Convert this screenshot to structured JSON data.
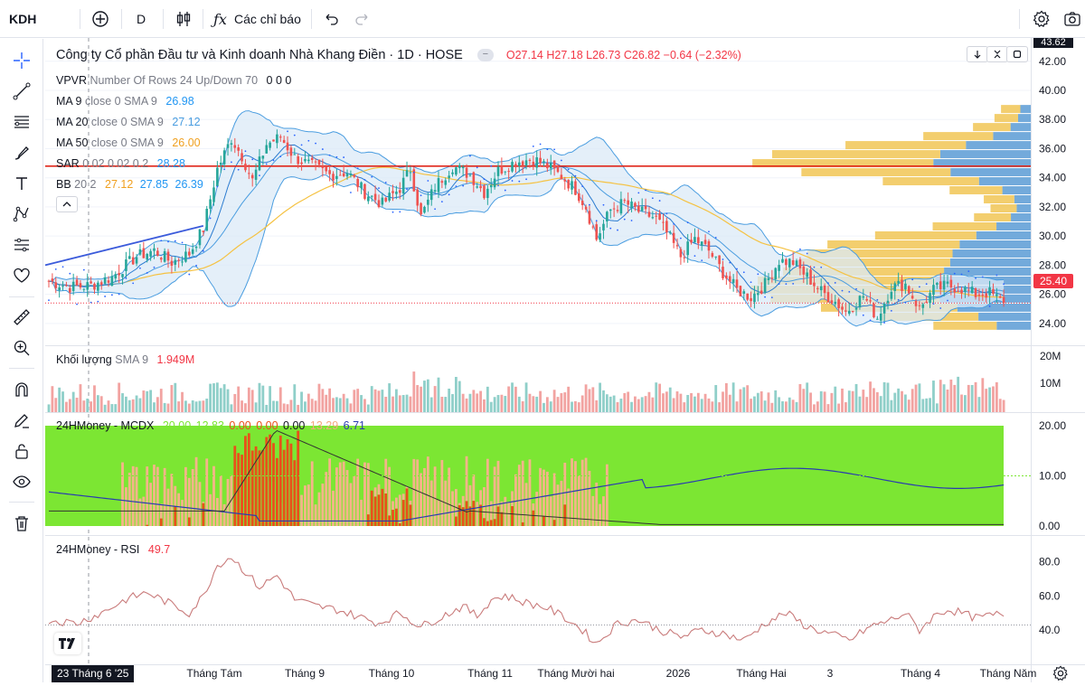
{
  "toolbar": {
    "symbol": "KDH",
    "interval": "D",
    "indicators_label": "Các chỉ báo"
  },
  "header": {
    "company": "Công ty Cổ phần Đầu tư và Kinh doanh Nhà Khang Điền · 1D · HOSE",
    "o": "O27.14",
    "h": "H27.18",
    "l": "L26.73",
    "c": "C26.82",
    "change": "−0.64 (−2.32%)"
  },
  "legends": {
    "vpvr": {
      "name": "VPVR",
      "params": "Number Of Rows 24 Up/Down 70",
      "values": "0 0 0"
    },
    "ma9": {
      "name": "MA 9",
      "params": "close 0 SMA 9",
      "value": "26.98"
    },
    "ma20": {
      "name": "MA 20",
      "params": "close 0 SMA 9",
      "value": "27.12"
    },
    "ma50": {
      "name": "MA 50",
      "params": "close 0 SMA 9",
      "value": "26.00"
    },
    "sar": {
      "name": "SAR",
      "params": "0.02 0.02 0.2",
      "value": "28.28"
    },
    "bb": {
      "name": "BB",
      "params": "20 2",
      "v1": "27.12",
      "v2": "27.85",
      "v3": "26.39"
    },
    "volume": {
      "name": "Khối lượng",
      "params": "SMA 9",
      "value": "1.949M"
    },
    "mcdx": {
      "name": "24HMoney - MCDX",
      "v1": "20.00",
      "v2": "12.83",
      "v3": "0.00",
      "v4": "0.00",
      "v5": "0.00",
      "v6": "13.29",
      "v7": "6.71"
    },
    "rsi": {
      "name": "24HMoney - RSI",
      "value": "49.7"
    }
  },
  "tags": {
    "last_price": "25.40",
    "top_price": "43.62",
    "crosshair_date": "23 Tháng 6 '25"
  },
  "colors": {
    "up": "#26a69a",
    "down": "#ef5350",
    "bb_fill": "#dbeaf7",
    "bb_line": "#4a9de0",
    "ma50": "#f5c242",
    "vpvr_up": "#5b9bd5",
    "vpvr_down": "#f0c24a",
    "mcdx_green": "#7ce633",
    "mcdx_orange": "#e8501a",
    "rsi": "#c97b7b",
    "hline": "#e0271b"
  },
  "chart_data": [
    {
      "type": "candlestick",
      "title": "Công ty Cổ phần Đầu tư và Kinh doanh Nhà Khang Điền · 1D · HOSE",
      "x_ticks": [
        "23 Tháng 6 '25",
        "Tháng Tám",
        "Tháng 9",
        "Tháng 10",
        "Tháng 11",
        "Tháng Mười hai",
        "2026",
        "Tháng Hai",
        "3",
        "Tháng 4",
        "Tháng Năm"
      ],
      "y_ticks": [
        24,
        26,
        28,
        30,
        32,
        34,
        36,
        38,
        40,
        42
      ],
      "ylim": [
        22.5,
        43.6
      ],
      "close_path": [
        [
          0,
          26.9
        ],
        [
          6,
          26.5
        ],
        [
          12,
          26.6
        ],
        [
          18,
          27.2
        ],
        [
          25,
          28.6
        ],
        [
          30,
          29.0
        ],
        [
          35,
          28.2
        ],
        [
          40,
          28.8
        ],
        [
          44,
          30.5
        ],
        [
          48,
          34.6
        ],
        [
          52,
          36.7
        ],
        [
          55,
          35.5
        ],
        [
          58,
          33.8
        ],
        [
          62,
          36.3
        ],
        [
          66,
          36.8
        ],
        [
          70,
          35.4
        ],
        [
          75,
          34.8
        ],
        [
          80,
          34.2
        ],
        [
          85,
          34.4
        ],
        [
          90,
          33.0
        ],
        [
          95,
          32.2
        ],
        [
          100,
          33.3
        ],
        [
          103,
          34.6
        ],
        [
          106,
          31.3
        ],
        [
          110,
          33.4
        ],
        [
          115,
          34.8
        ],
        [
          120,
          34.2
        ],
        [
          124,
          33.0
        ],
        [
          128,
          34.5
        ],
        [
          133,
          35.1
        ],
        [
          138,
          35.3
        ],
        [
          142,
          34.8
        ],
        [
          146,
          34.1
        ],
        [
          150,
          33.2
        ],
        [
          153,
          32.0
        ],
        [
          156,
          29.8
        ],
        [
          160,
          31.8
        ],
        [
          164,
          32.3
        ],
        [
          168,
          31.7
        ],
        [
          173,
          31.2
        ],
        [
          176,
          30.2
        ],
        [
          180,
          28.6
        ],
        [
          184,
          29.8
        ],
        [
          188,
          29.0
        ],
        [
          192,
          27.5
        ],
        [
          196,
          26.3
        ],
        [
          200,
          25.8
        ],
        [
          204,
          26.7
        ],
        [
          208,
          28.3
        ],
        [
          212,
          28.2
        ],
        [
          216,
          27.2
        ],
        [
          220,
          26.2
        ],
        [
          224,
          25.5
        ],
        [
          227,
          24.8
        ],
        [
          232,
          25.9
        ],
        [
          236,
          24.4
        ],
        [
          240,
          26.5
        ],
        [
          244,
          26.7
        ],
        [
          248,
          25.0
        ],
        [
          252,
          26.3
        ],
        [
          256,
          26.6
        ],
        [
          260,
          26.4
        ],
        [
          264,
          26.0
        ],
        [
          268,
          26.1
        ],
        [
          272,
          25.4
        ]
      ],
      "overlays": [
        "MA 9",
        "MA 20",
        "MA 50",
        "SAR",
        "BB 20 2"
      ],
      "reference_line": 34.8,
      "last_price": 25.4
    },
    {
      "type": "bar",
      "title": "Khối lượng",
      "y_ticks": [
        "10M",
        "20M"
      ],
      "sma9": "1.949M"
    },
    {
      "type": "area",
      "title": "24HMoney - MCDX",
      "y_ticks": [
        0,
        10,
        20
      ],
      "ylim": [
        0,
        20
      ]
    },
    {
      "type": "line",
      "title": "24HMoney - RSI",
      "y_ticks": [
        40,
        60,
        80
      ],
      "last": 49.7,
      "path": [
        [
          0,
          46
        ],
        [
          8,
          44
        ],
        [
          15,
          50
        ],
        [
          22,
          58
        ],
        [
          28,
          62
        ],
        [
          34,
          56
        ],
        [
          40,
          50
        ],
        [
          44,
          60
        ],
        [
          48,
          78
        ],
        [
          52,
          83
        ],
        [
          56,
          74
        ],
        [
          60,
          65
        ],
        [
          65,
          72
        ],
        [
          70,
          58
        ],
        [
          76,
          54
        ],
        [
          82,
          52
        ],
        [
          88,
          48
        ],
        [
          94,
          44
        ],
        [
          100,
          50
        ],
        [
          106,
          42
        ],
        [
          112,
          48
        ],
        [
          118,
          54
        ],
        [
          122,
          48
        ],
        [
          126,
          58
        ],
        [
          130,
          60
        ],
        [
          136,
          56
        ],
        [
          142,
          53
        ],
        [
          148,
          46
        ],
        [
          152,
          40
        ],
        [
          156,
          32
        ],
        [
          162,
          44
        ],
        [
          168,
          46
        ],
        [
          174,
          40
        ],
        [
          180,
          36
        ],
        [
          186,
          40
        ],
        [
          192,
          38
        ],
        [
          198,
          34
        ],
        [
          204,
          44
        ],
        [
          210,
          50
        ],
        [
          216,
          42
        ],
        [
          222,
          38
        ],
        [
          228,
          34
        ],
        [
          234,
          42
        ],
        [
          240,
          46
        ],
        [
          244,
          50
        ],
        [
          248,
          40
        ],
        [
          252,
          48
        ],
        [
          256,
          52
        ],
        [
          260,
          50
        ],
        [
          264,
          47
        ],
        [
          272,
          49.7
        ]
      ]
    }
  ]
}
